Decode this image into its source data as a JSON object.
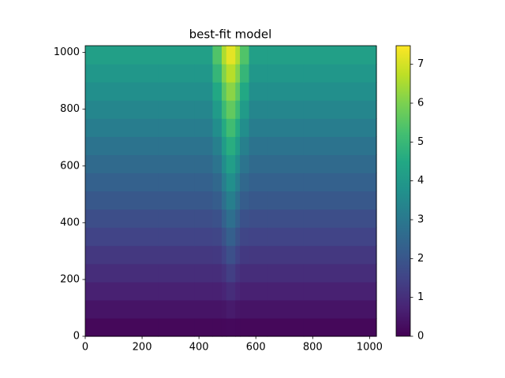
{
  "chart_data": {
    "type": "heatmap",
    "title": "best-fit model",
    "colormap": "viridis",
    "x_edges": [
      0,
      256,
      384,
      448,
      480,
      496,
      528,
      544,
      576,
      640,
      768,
      1024
    ],
    "y_edges": [
      0,
      64,
      128,
      192,
      256,
      320,
      384,
      448,
      512,
      576,
      640,
      704,
      768,
      832,
      896,
      960,
      1024
    ],
    "values": [
      [
        0.14,
        0.14,
        0.14,
        0.14,
        0.15,
        0.17,
        0.15,
        0.14,
        0.14,
        0.14,
        0.14
      ],
      [
        0.41,
        0.41,
        0.41,
        0.41,
        0.44,
        0.55,
        0.44,
        0.41,
        0.41,
        0.41,
        0.41
      ],
      [
        0.68,
        0.68,
        0.68,
        0.68,
        0.77,
        0.96,
        0.77,
        0.68,
        0.68,
        0.68,
        0.68
      ],
      [
        0.95,
        0.95,
        0.95,
        0.96,
        1.11,
        1.38,
        1.11,
        0.96,
        0.95,
        0.95,
        0.95
      ],
      [
        1.22,
        1.22,
        1.22,
        1.24,
        1.48,
        1.82,
        1.48,
        1.24,
        1.22,
        1.22,
        1.22
      ],
      [
        1.5,
        1.5,
        1.5,
        1.55,
        1.89,
        2.27,
        1.89,
        1.55,
        1.5,
        1.5,
        1.5
      ],
      [
        1.77,
        1.77,
        1.77,
        1.85,
        2.29,
        2.73,
        2.29,
        1.85,
        1.77,
        1.77,
        1.77
      ],
      [
        2.04,
        2.04,
        2.04,
        2.18,
        2.72,
        3.2,
        2.72,
        2.18,
        2.04,
        2.04,
        2.04
      ],
      [
        2.31,
        2.31,
        2.31,
        2.52,
        3.16,
        3.68,
        3.16,
        2.52,
        2.31,
        2.31,
        2.31
      ],
      [
        2.58,
        2.58,
        2.58,
        2.88,
        3.62,
        4.15,
        3.62,
        2.88,
        2.58,
        2.58,
        2.58
      ],
      [
        2.85,
        2.85,
        2.85,
        3.24,
        4.09,
        4.64,
        4.09,
        3.24,
        2.85,
        2.85,
        2.85
      ],
      [
        3.13,
        3.13,
        3.13,
        3.66,
        4.56,
        5.15,
        4.56,
        3.66,
        3.13,
        3.13,
        3.13
      ],
      [
        3.4,
        3.4,
        3.4,
        4.05,
        5.07,
        5.65,
        5.07,
        4.05,
        3.4,
        3.4,
        3.4
      ],
      [
        3.67,
        3.67,
        3.67,
        4.49,
        5.56,
        6.16,
        5.56,
        4.49,
        3.67,
        3.67,
        3.67
      ],
      [
        3.94,
        3.94,
        3.94,
        4.92,
        6.07,
        6.67,
        6.07,
        4.92,
        3.94,
        3.94,
        3.94
      ],
      [
        4.21,
        4.21,
        4.21,
        5.4,
        6.56,
        7.19,
        6.56,
        5.4,
        4.21,
        4.21,
        4.21
      ]
    ],
    "xlim": [
      0,
      1024
    ],
    "ylim": [
      0,
      1024
    ],
    "xticks": [
      0,
      200,
      400,
      600,
      800,
      1000
    ],
    "yticks": [
      0,
      200,
      400,
      600,
      800,
      1000
    ],
    "clim": [
      0,
      7.48
    ],
    "cticks": [
      0,
      1,
      2,
      3,
      4,
      5,
      6,
      7
    ]
  }
}
